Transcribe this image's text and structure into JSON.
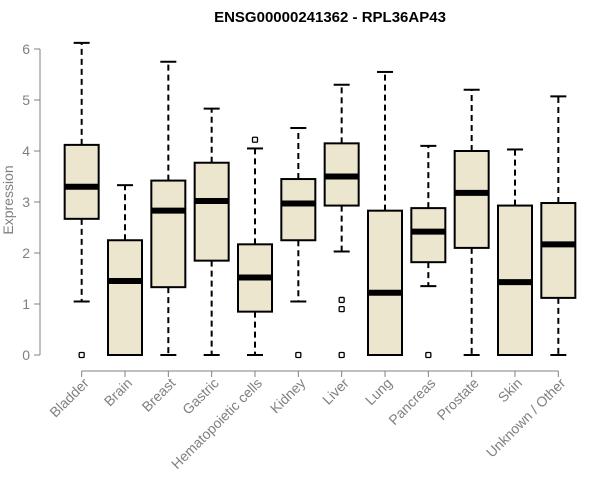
{
  "chart_data": {
    "type": "boxplot",
    "title": "ENSG00000241362 - RPL36AP43",
    "xlabel": "",
    "ylabel": "Expression",
    "ylim": [
      0,
      6.2
    ],
    "yticks": [
      0,
      1,
      2,
      3,
      4,
      5,
      6
    ],
    "box_fill": "#ede6cf",
    "axis_color": "#808080",
    "categories": [
      "Bladder",
      "Brain",
      "Breast",
      "Gastric",
      "Hematopoietic cells",
      "Kidney",
      "Liver",
      "Lung",
      "Pancreas",
      "Prostate",
      "Skin",
      "Unknown / Other"
    ],
    "boxes": [
      {
        "whisker_low": 1.05,
        "q1": 2.67,
        "median": 3.3,
        "q3": 4.12,
        "whisker_high": 6.12,
        "outliers": [
          0
        ]
      },
      {
        "whisker_low": 0,
        "q1": 0,
        "median": 1.45,
        "q3": 2.25,
        "whisker_high": 3.33,
        "outliers": []
      },
      {
        "whisker_low": 0,
        "q1": 1.33,
        "median": 2.83,
        "q3": 3.42,
        "whisker_high": 5.75,
        "outliers": []
      },
      {
        "whisker_low": 0,
        "q1": 1.85,
        "median": 3.02,
        "q3": 3.77,
        "whisker_high": 4.83,
        "outliers": []
      },
      {
        "whisker_low": 0,
        "q1": 0.85,
        "median": 1.52,
        "q3": 2.17,
        "whisker_high": 4.05,
        "outliers": [
          4.22
        ]
      },
      {
        "whisker_low": 1.05,
        "q1": 2.25,
        "median": 2.97,
        "q3": 3.45,
        "whisker_high": 4.45,
        "outliers": [
          0
        ]
      },
      {
        "whisker_low": 2.03,
        "q1": 2.93,
        "median": 3.5,
        "q3": 4.15,
        "whisker_high": 5.3,
        "outliers": [
          0,
          0.9,
          1.08
        ]
      },
      {
        "whisker_low": 0,
        "q1": 0,
        "median": 1.22,
        "q3": 2.83,
        "whisker_high": 5.55,
        "outliers": []
      },
      {
        "whisker_low": 1.35,
        "q1": 1.82,
        "median": 2.42,
        "q3": 2.88,
        "whisker_high": 4.1,
        "outliers": [
          0
        ]
      },
      {
        "whisker_low": 0,
        "q1": 2.1,
        "median": 3.18,
        "q3": 4.0,
        "whisker_high": 5.2,
        "outliers": []
      },
      {
        "whisker_low": 0,
        "q1": 0,
        "median": 1.43,
        "q3": 2.93,
        "whisker_high": 4.03,
        "outliers": []
      },
      {
        "whisker_low": 0,
        "q1": 1.12,
        "median": 2.17,
        "q3": 2.98,
        "whisker_high": 5.07,
        "outliers": []
      }
    ]
  }
}
